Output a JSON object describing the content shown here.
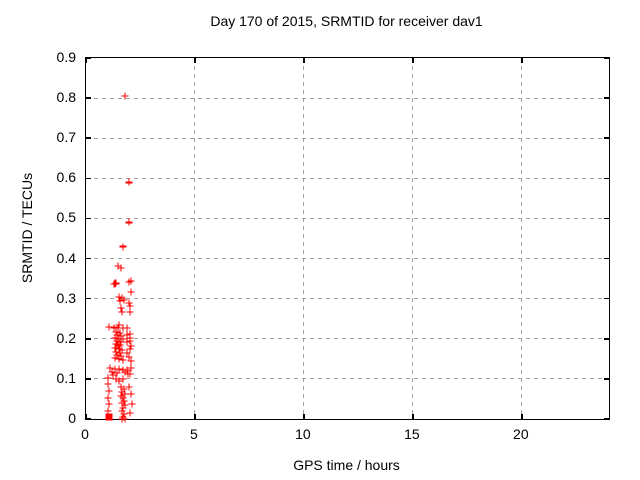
{
  "title": "Day 170 of 2015, SRMTID for receiver dav1",
  "chart_data": {
    "type": "scatter",
    "title": "Day 170 of 2015, SRMTID for receiver dav1",
    "xlabel": "GPS time / hours",
    "ylabel": "SRMTID / TECUs",
    "xlim": [
      0,
      24
    ],
    "ylim": [
      0,
      0.9
    ],
    "x_ticks": [
      0,
      5,
      10,
      15,
      20
    ],
    "x_tick_labels": [
      "0",
      "5",
      "10",
      "15",
      "20"
    ],
    "y_ticks": [
      0,
      0.1,
      0.2,
      0.3,
      0.4,
      0.5,
      0.6,
      0.7,
      0.8,
      0.9
    ],
    "y_tick_labels": [
      "0",
      "0.1",
      "0.2",
      "0.3",
      "0.4",
      "0.5",
      "0.6",
      "0.7",
      "0.8",
      "0.9"
    ],
    "grid": true,
    "legend": "none",
    "marker_color": "#ff0000",
    "grid_color": "#a0a0a0",
    "series": [
      {
        "name": "plus-markers",
        "marker": "plus",
        "points": [
          [
            1.79,
            0.805
          ],
          [
            1.97,
            0.59
          ],
          [
            1.97,
            0.49
          ],
          [
            1.7,
            0.43
          ],
          [
            1.47,
            0.381
          ],
          [
            1.61,
            0.376
          ],
          [
            1.3,
            0.336
          ],
          [
            1.36,
            0.338
          ],
          [
            1.97,
            0.342
          ],
          [
            2.07,
            0.344
          ],
          [
            2.07,
            0.317
          ],
          [
            2.02,
            0.282
          ],
          [
            1.51,
            0.304
          ],
          [
            1.65,
            0.302
          ],
          [
            1.74,
            0.297
          ],
          [
            1.56,
            0.294
          ],
          [
            1.97,
            0.289
          ],
          [
            1.61,
            0.277
          ],
          [
            1.65,
            0.267
          ],
          [
            2.02,
            0.267
          ],
          [
            1.06,
            0.229
          ],
          [
            1.29,
            0.228
          ],
          [
            1.47,
            0.227
          ],
          [
            1.7,
            0.227
          ],
          [
            1.51,
            0.234
          ],
          [
            1.88,
            0.227
          ],
          [
            1.38,
            0.217
          ],
          [
            1.56,
            0.214
          ],
          [
            1.42,
            0.209
          ],
          [
            1.61,
            0.207
          ],
          [
            1.33,
            0.202
          ],
          [
            1.51,
            0.199
          ],
          [
            1.7,
            0.199
          ],
          [
            1.42,
            0.194
          ],
          [
            1.61,
            0.192
          ],
          [
            1.38,
            0.187
          ],
          [
            1.56,
            0.184
          ],
          [
            1.47,
            0.182
          ],
          [
            1.88,
            0.209
          ],
          [
            2.02,
            0.212
          ],
          [
            2.02,
            0.202
          ],
          [
            1.88,
            0.192
          ],
          [
            2.02,
            0.194
          ],
          [
            2.07,
            0.182
          ],
          [
            1.33,
            0.177
          ],
          [
            1.51,
            0.174
          ],
          [
            1.65,
            0.172
          ],
          [
            1.38,
            0.167
          ],
          [
            1.56,
            0.165
          ],
          [
            1.42,
            0.16
          ],
          [
            1.61,
            0.157
          ],
          [
            1.33,
            0.152
          ],
          [
            1.51,
            0.15
          ],
          [
            1.7,
            0.147
          ],
          [
            1.88,
            0.165
          ],
          [
            1.97,
            0.155
          ],
          [
            2.02,
            0.174
          ],
          [
            2.07,
            0.145
          ],
          [
            1.1,
            0.127
          ],
          [
            1.33,
            0.125
          ],
          [
            1.51,
            0.125
          ],
          [
            1.7,
            0.122
          ],
          [
            1.88,
            0.122
          ],
          [
            2.07,
            0.127
          ],
          [
            1.19,
            0.117
          ],
          [
            1.42,
            0.115
          ],
          [
            1.79,
            0.117
          ],
          [
            1.93,
            0.112
          ],
          [
            1.24,
            0.11
          ],
          [
            2.02,
            0.112
          ],
          [
            1.01,
            0.102
          ],
          [
            1.38,
            0.1
          ],
          [
            1.7,
            0.1
          ],
          [
            1.51,
            0.095
          ],
          [
            1.01,
            0.087
          ],
          [
            1.06,
            0.07
          ],
          [
            1.01,
            0.052
          ],
          [
            1.06,
            0.037
          ],
          [
            1.01,
            0.02
          ],
          [
            1.61,
            0.08
          ],
          [
            1.74,
            0.075
          ],
          [
            1.65,
            0.067
          ],
          [
            1.79,
            0.062
          ],
          [
            1.61,
            0.057
          ],
          [
            1.7,
            0.052
          ],
          [
            1.74,
            0.045
          ],
          [
            1.65,
            0.04
          ],
          [
            1.79,
            0.035
          ],
          [
            1.7,
            0.027
          ],
          [
            1.65,
            0.02
          ],
          [
            1.74,
            0.012
          ],
          [
            1.7,
            0.005
          ],
          [
            1.79,
            0.0
          ],
          [
            1.65,
            0.0
          ],
          [
            1.97,
            0.08
          ],
          [
            2.07,
            0.062
          ],
          [
            2.11,
            0.037
          ],
          [
            2.02,
            0.015
          ]
        ]
      },
      {
        "name": "square-marker",
        "marker": "square",
        "points": [
          [
            1.06,
            0.005
          ]
        ]
      }
    ]
  }
}
